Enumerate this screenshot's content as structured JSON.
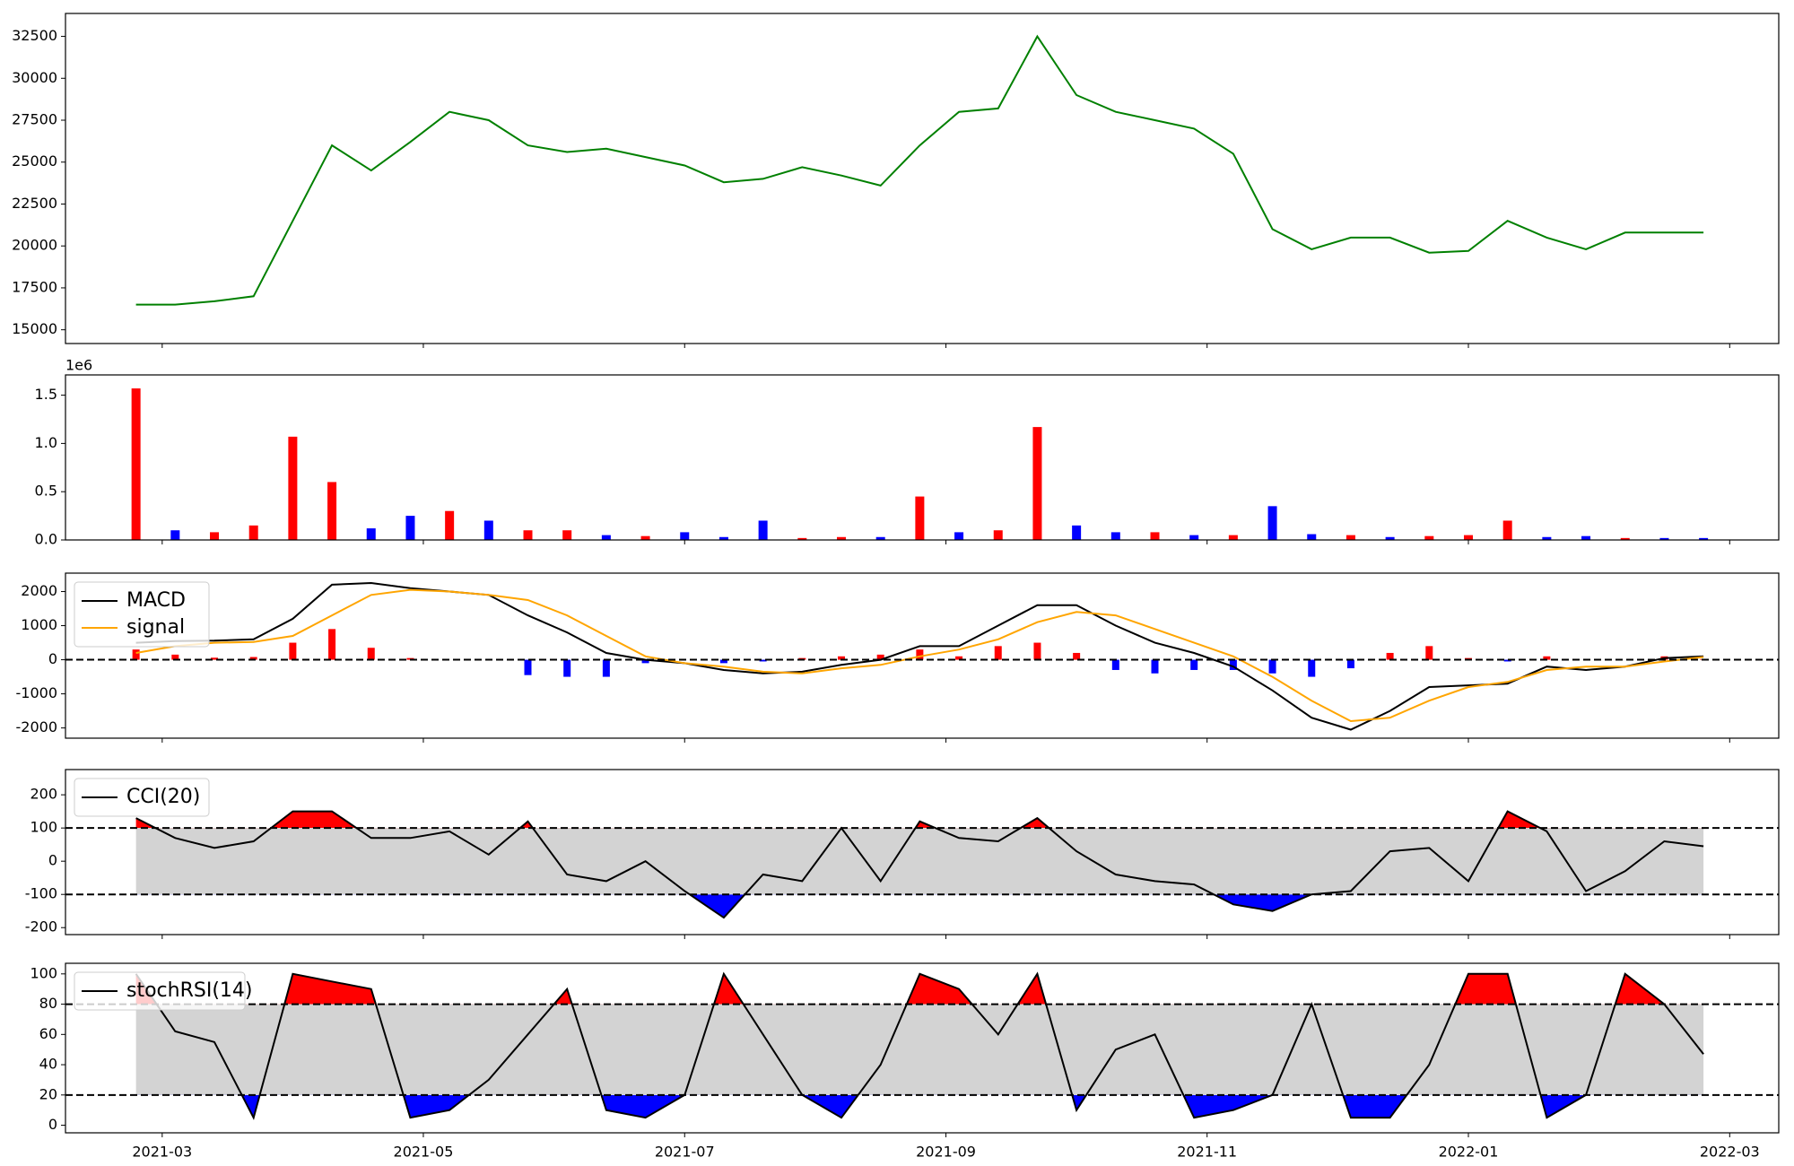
{
  "chart_data": {
    "type": "multi-panel",
    "x": [
      2021.15,
      2021.175,
      2021.2,
      2021.225,
      2021.25,
      2021.275,
      2021.3,
      2021.325,
      2021.35,
      2021.375,
      2021.4,
      2021.425,
      2021.45,
      2021.475,
      2021.5,
      2021.525,
      2021.55,
      2021.575,
      2021.6,
      2021.625,
      2021.65,
      2021.675,
      2021.7,
      2021.725,
      2021.75,
      2021.775,
      2021.8,
      2021.825,
      2021.85,
      2021.875,
      2021.9,
      2021.925,
      2021.95,
      2021.975,
      2022.0,
      2022.025,
      2022.05,
      2022.075,
      2022.1,
      2022.125,
      2022.15
    ],
    "xlim": [
      2021.105,
      2022.198
    ],
    "xticks": [
      {
        "value": 2021.1667,
        "label": "2021-03"
      },
      {
        "value": 2021.3333,
        "label": "2021-05"
      },
      {
        "value": 2021.5,
        "label": "2021-07"
      },
      {
        "value": 2021.6667,
        "label": "2021-09"
      },
      {
        "value": 2021.8333,
        "label": "2021-11"
      },
      {
        "value": 2022.0,
        "label": "2022-01"
      },
      {
        "value": 2022.1667,
        "label": "2022-03"
      }
    ],
    "panels": [
      {
        "type": "line",
        "ylim": [
          14180,
          33867
        ],
        "yticks": [
          15000,
          17500,
          20000,
          22500,
          25000,
          27500,
          30000,
          32500
        ],
        "series": [
          {
            "color": "green",
            "values": [
              16500,
              16500,
              16700,
              17000,
              21500,
              26000,
              24500,
              26200,
              28000,
              27500,
              26000,
              25600,
              25800,
              25300,
              24800,
              23800,
              24000,
              24700,
              24200,
              23600,
              26000,
              28000,
              28200,
              32500,
              29000,
              28000,
              27500,
              27000,
              25500,
              21000,
              19800,
              20500,
              20500,
              19600,
              19700,
              21500,
              20500,
              19800,
              20800,
              20800,
              20800
            ]
          }
        ]
      },
      {
        "type": "bar",
        "ylim": [
          0,
          1.71
        ],
        "offset_label": "1e6",
        "yticks": [
          {
            "value": 0,
            "label": "0.0"
          },
          0.5,
          {
            "value": 1,
            "label": "1.0"
          },
          1.5
        ],
        "values": [
          1.57,
          0.1,
          0.08,
          0.15,
          1.07,
          0.6,
          0.12,
          0.25,
          0.3,
          0.2,
          0.1,
          0.1,
          0.05,
          0.04,
          0.08,
          0.03,
          0.2,
          0.02,
          0.03,
          0.03,
          0.45,
          0.08,
          0.1,
          1.17,
          0.15,
          0.08,
          0.08,
          0.05,
          0.05,
          0.35,
          0.06,
          0.05,
          0.03,
          0.04,
          0.05,
          0.2,
          0.03,
          0.04,
          0.02,
          0.02,
          0.02
        ],
        "colors": [
          "red",
          "blue",
          "red",
          "red",
          "red",
          "red",
          "blue",
          "blue",
          "red",
          "blue",
          "red",
          "red",
          "blue",
          "red",
          "blue",
          "blue",
          "blue",
          "red",
          "red",
          "blue",
          "red",
          "blue",
          "red",
          "red",
          "blue",
          "blue",
          "red",
          "blue",
          "red",
          "blue",
          "blue",
          "red",
          "blue",
          "red",
          "red",
          "red",
          "blue",
          "blue",
          "red",
          "blue",
          "blue"
        ]
      },
      {
        "type": "macd",
        "ylim": [
          -2300,
          2540
        ],
        "yticks": [
          -2000,
          -1000,
          0,
          1000,
          2000
        ],
        "hlines": [
          0
        ],
        "legend": "upper left",
        "series": [
          {
            "name": "MACD",
            "color": "black",
            "values": [
              500,
              550,
              560,
              600,
              1200,
              2200,
              2250,
              2100,
              2000,
              1900,
              1300,
              800,
              200,
              0,
              -100,
              -300,
              -400,
              -350,
              -150,
              0,
              400,
              400,
              1000,
              1600,
              1600,
              1000,
              500,
              200,
              -200,
              -900,
              -1700,
              -2050,
              -1500,
              -800,
              -750,
              -700,
              -200,
              -300,
              -200,
              50,
              100
            ]
          },
          {
            "name": "signal",
            "color": "orange",
            "values": [
              200,
              400,
              500,
              520,
              700,
              1300,
              1900,
              2050,
              2000,
              1900,
              1750,
              1300,
              700,
              100,
              -100,
              -200,
              -350,
              -400,
              -250,
              -150,
              100,
              300,
              600,
              1100,
              1400,
              1300,
              900,
              500,
              100,
              -500,
              -1200,
              -1800,
              -1700,
              -1200,
              -800,
              -650,
              -300,
              -200,
              -200,
              -50,
              80
            ]
          }
        ],
        "histogram": {
          "pos_color": "red",
          "neg_color": "blue",
          "values": [
            300,
            150,
            60,
            80,
            500,
            900,
            350,
            50,
            0,
            0,
            -450,
            -500,
            -500,
            -100,
            0,
            -100,
            -50,
            50,
            100,
            150,
            300,
            100,
            400,
            500,
            200,
            -300,
            -400,
            -300,
            -300,
            -400,
            -500,
            -250,
            200,
            400,
            50,
            -50,
            100,
            0,
            0,
            100,
            20
          ]
        }
      },
      {
        "type": "band",
        "ylim": [
          -221,
          276
        ],
        "yticks": [
          -200,
          -100,
          0,
          100,
          200
        ],
        "hlines": [
          -100,
          100
        ],
        "legend": "upper left",
        "band_color": "lightgray",
        "upper_color": "red",
        "lower_color": "blue",
        "series": [
          {
            "name": "CCI(20)",
            "color": "black",
            "values": [
              130,
              70,
              40,
              60,
              150,
              150,
              70,
              70,
              90,
              20,
              120,
              -40,
              -60,
              0,
              -90,
              -170,
              -40,
              -60,
              100,
              -60,
              120,
              70,
              60,
              130,
              30,
              -40,
              -60,
              -70,
              -130,
              -150,
              -100,
              -90,
              30,
              40,
              -60,
              150,
              90,
              -90,
              -30,
              60,
              45
            ]
          }
        ]
      },
      {
        "type": "band",
        "ylim": [
          -5,
          107
        ],
        "yticks": [
          0,
          20,
          40,
          60,
          80,
          100
        ],
        "hlines": [
          20,
          80
        ],
        "legend": "upper left",
        "band_color": "lightgray",
        "upper_color": "red",
        "lower_color": "blue",
        "series": [
          {
            "name": "stochRSI(14)",
            "color": "black",
            "values": [
              100,
              62,
              55,
              5,
              100,
              95,
              90,
              5,
              10,
              30,
              60,
              90,
              10,
              5,
              20,
              100,
              60,
              20,
              5,
              40,
              100,
              90,
              60,
              100,
              10,
              50,
              60,
              5,
              10,
              20,
              80,
              5,
              5,
              40,
              100,
              100,
              5,
              20,
              100,
              80,
              47
            ]
          }
        ]
      }
    ]
  }
}
